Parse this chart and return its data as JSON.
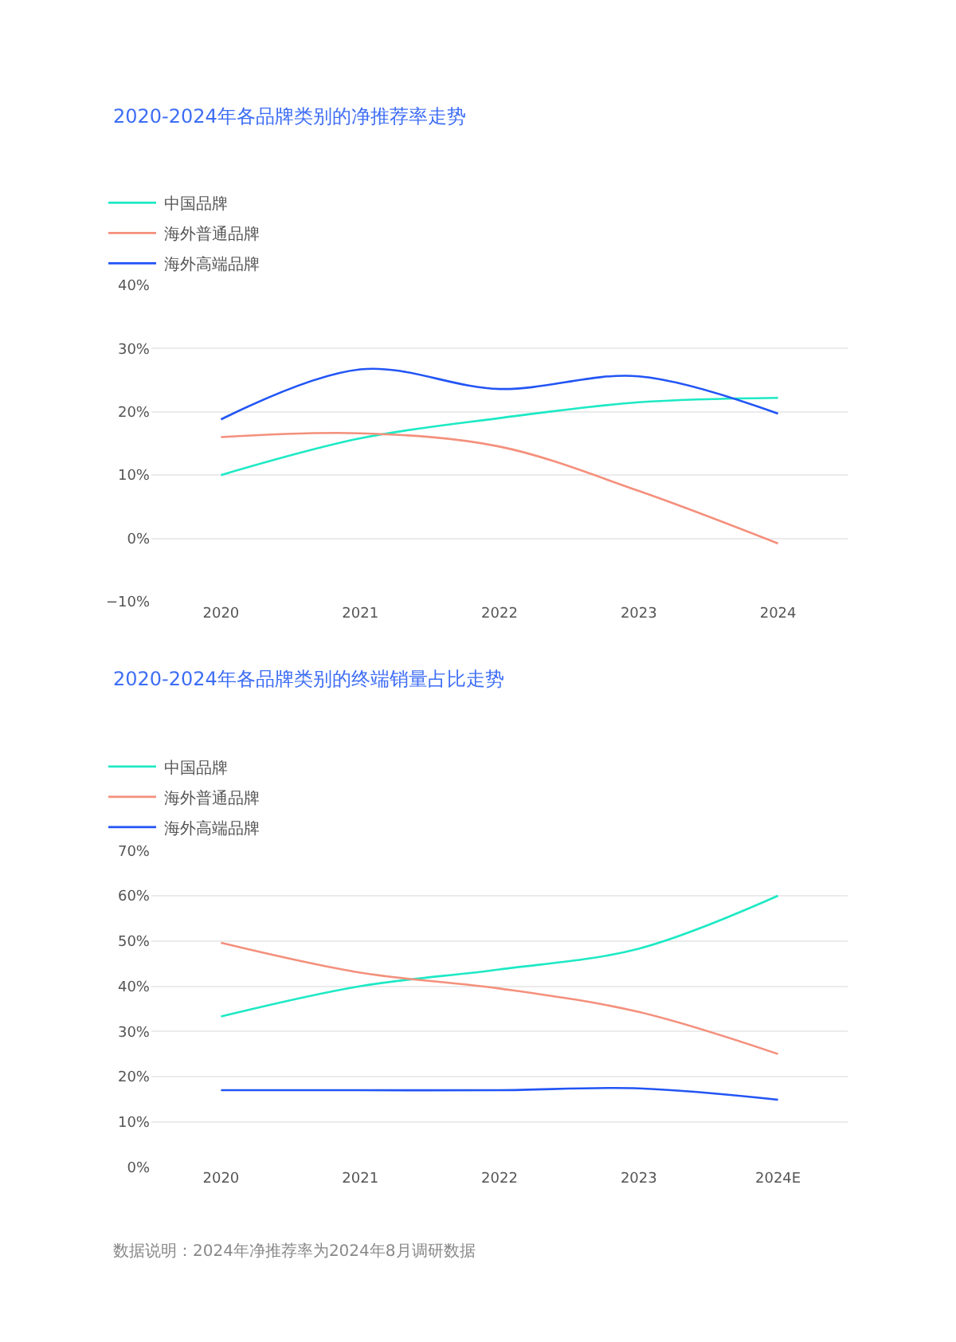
{
  "chart_data": [
    {
      "type": "line",
      "title": "2020-2024年各品牌类别的净推荐率走势",
      "categories": [
        "2020",
        "2021",
        "2022",
        "2023",
        "2024"
      ],
      "series": [
        {
          "name": "中国品牌",
          "color": "#1de9c4",
          "values": [
            10,
            15.8,
            19,
            21.5,
            22.2
          ]
        },
        {
          "name": "海外普通品牌",
          "color": "#f4907c",
          "values": [
            16,
            16.6,
            14.5,
            7.5,
            -0.8
          ]
        },
        {
          "name": "海外高端品牌",
          "color": "#2255f5",
          "values": [
            18.8,
            26.7,
            23.6,
            25.6,
            19.7
          ]
        }
      ],
      "ylim": [
        -10,
        40
      ],
      "yticks": [
        {
          "value": -10,
          "label": "−10%"
        },
        {
          "value": 0,
          "label": "0%"
        },
        {
          "value": 10,
          "label": "10%"
        },
        {
          "value": 20,
          "label": "20%"
        },
        {
          "value": 30,
          "label": "30%"
        },
        {
          "value": 40,
          "label": "40%"
        }
      ],
      "grid": "y",
      "legend": "top left",
      "marker": "none"
    },
    {
      "type": "line",
      "title": "2020-2024年各品牌类别的终端销量占比走势",
      "categories": [
        "2020",
        "2021",
        "2022",
        "2023",
        "2024E"
      ],
      "series": [
        {
          "name": "中国品牌",
          "color": "#1de9c4",
          "values": [
            33.3,
            40,
            43.7,
            48.3,
            60
          ]
        },
        {
          "name": "海外普通品牌",
          "color": "#f4907c",
          "values": [
            49.6,
            43,
            39.5,
            34.3,
            25
          ]
        },
        {
          "name": "海外高端品牌",
          "color": "#2255f5",
          "values": [
            17,
            17,
            17,
            17.4,
            14.9
          ]
        }
      ],
      "ylim": [
        0,
        70
      ],
      "yticks": [
        {
          "value": 0,
          "label": "0%"
        },
        {
          "value": 10,
          "label": "10%"
        },
        {
          "value": 20,
          "label": "20%"
        },
        {
          "value": 30,
          "label": "30%"
        },
        {
          "value": 40,
          "label": "40%"
        },
        {
          "value": 50,
          "label": "50%"
        },
        {
          "value": 60,
          "label": "60%"
        },
        {
          "value": 70,
          "label": "70%"
        }
      ],
      "grid": "y",
      "legend": "top left",
      "marker": "none",
      "annotations": [
        "数据说明：2024年净推荐率为2024年8月调研数据"
      ]
    }
  ]
}
